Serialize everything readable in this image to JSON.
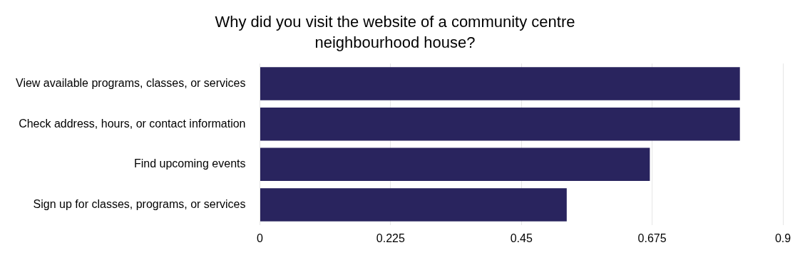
{
  "chart_data": {
    "type": "bar",
    "orientation": "horizontal",
    "title": "Why did you visit the website of a community centre neighbourhood house?",
    "categories": [
      "View available programs, classes, or services",
      "Check address, hours, or contact information",
      "Find upcoming events",
      "Sign up for classes, programs, or services"
    ],
    "values": [
      0.826,
      0.826,
      0.671,
      0.528
    ],
    "color": "#29245e",
    "xlim": [
      0,
      0.9
    ],
    "xticks": [
      0,
      0.225,
      0.45,
      0.675,
      0.9
    ],
    "grid": "x",
    "legend": false
  }
}
